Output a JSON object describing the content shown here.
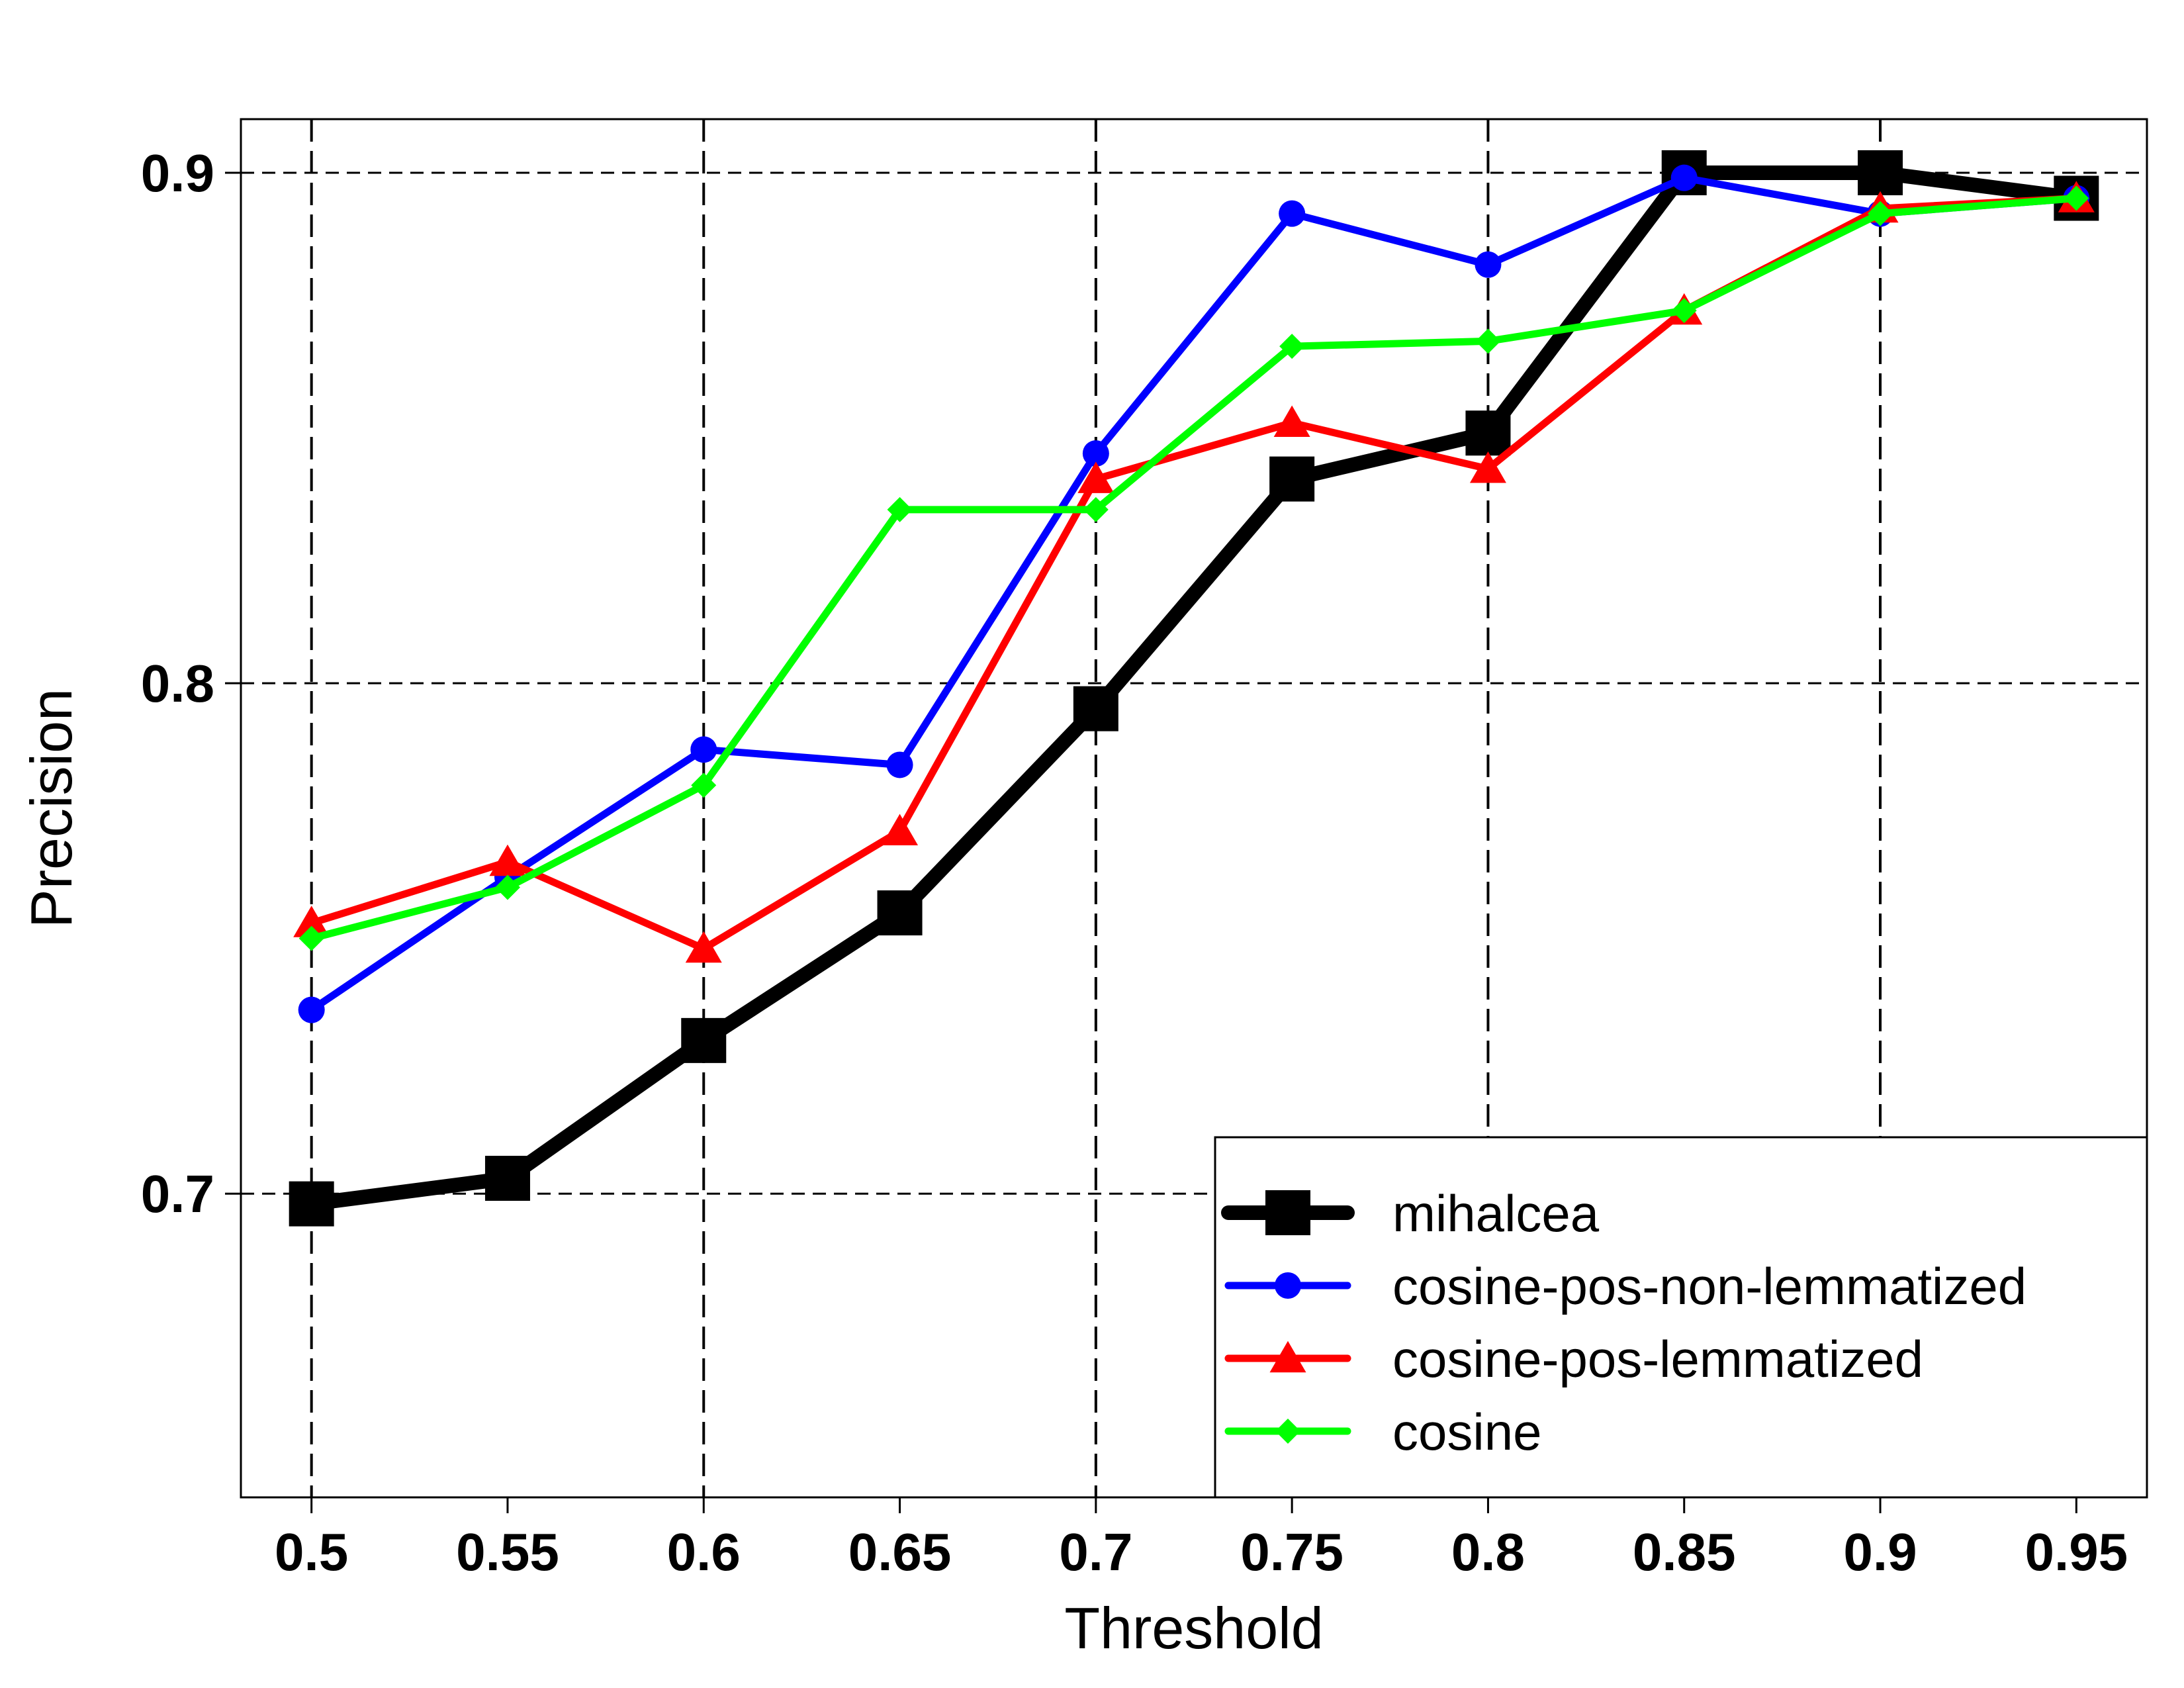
{
  "chart_data": {
    "type": "line",
    "title": "",
    "xlabel": "Threshold",
    "ylabel": "Precision",
    "x": [
      0.5,
      0.55,
      0.6,
      0.65,
      0.7,
      0.75,
      0.8,
      0.85,
      0.9,
      0.95
    ],
    "x_tick_labels": [
      "0.5",
      "0.55",
      "0.6",
      "0.65",
      "0.7",
      "0.75",
      "0.8",
      "0.85",
      "0.9",
      "0.95"
    ],
    "y_ticks": [
      0.7,
      0.8,
      0.9
    ],
    "y_tick_labels": [
      "0.7",
      "0.8",
      "0.9"
    ],
    "xlim": [
      0.482,
      0.968
    ],
    "ylim": [
      0.6405,
      0.9105
    ],
    "grid": true,
    "legend_position": "bottom-right",
    "series": [
      {
        "name": "mihalcea",
        "color": "#000000",
        "marker": "square",
        "values": [
          0.698,
          0.703,
          0.73,
          0.755,
          0.795,
          0.84,
          0.849,
          0.9,
          0.9,
          0.895
        ]
      },
      {
        "name": "cosine-pos-non-lemmatized",
        "color": "#0000ff",
        "marker": "circle",
        "values": [
          0.736,
          0.762,
          0.787,
          0.784,
          0.845,
          0.892,
          0.882,
          0.899,
          0.892,
          0.895
        ]
      },
      {
        "name": "cosine-pos-lemmatized",
        "color": "#ff0000",
        "marker": "triangle",
        "values": [
          0.753,
          0.765,
          0.748,
          0.771,
          0.84,
          0.851,
          0.842,
          0.873,
          0.893,
          0.895
        ]
      },
      {
        "name": "cosine",
        "color": "#00ff00",
        "marker": "diamond",
        "values": [
          0.75,
          0.76,
          0.78,
          0.834,
          0.834,
          0.866,
          0.867,
          0.873,
          0.892,
          0.895
        ]
      }
    ]
  }
}
